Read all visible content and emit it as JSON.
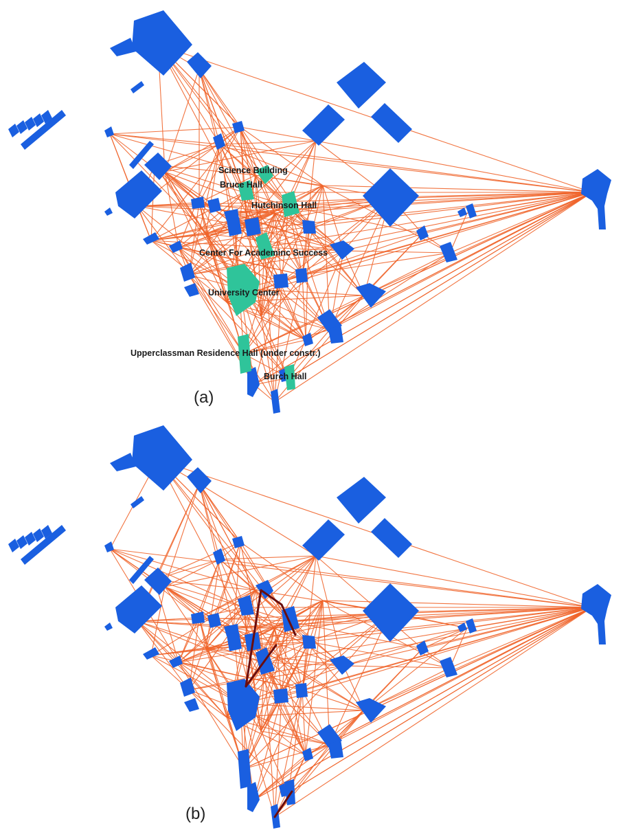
{
  "panels": [
    {
      "label": "(a)"
    },
    {
      "label": "(b)"
    }
  ],
  "buildings": {
    "science": "Science Building",
    "bruce": "Bruce Hall",
    "hutchinson": "Hutchinson Hall",
    "cas": "Center For Academinc Success",
    "uc": "University Center",
    "urh": "Upperclassman Residence Hall (under constr.)",
    "burch": "Burch Hall"
  },
  "colors": {
    "building": "#1a5fe0",
    "highlighted_building": "#2fc49a",
    "edge": "#f0642a",
    "path": "#6a0d0d"
  }
}
